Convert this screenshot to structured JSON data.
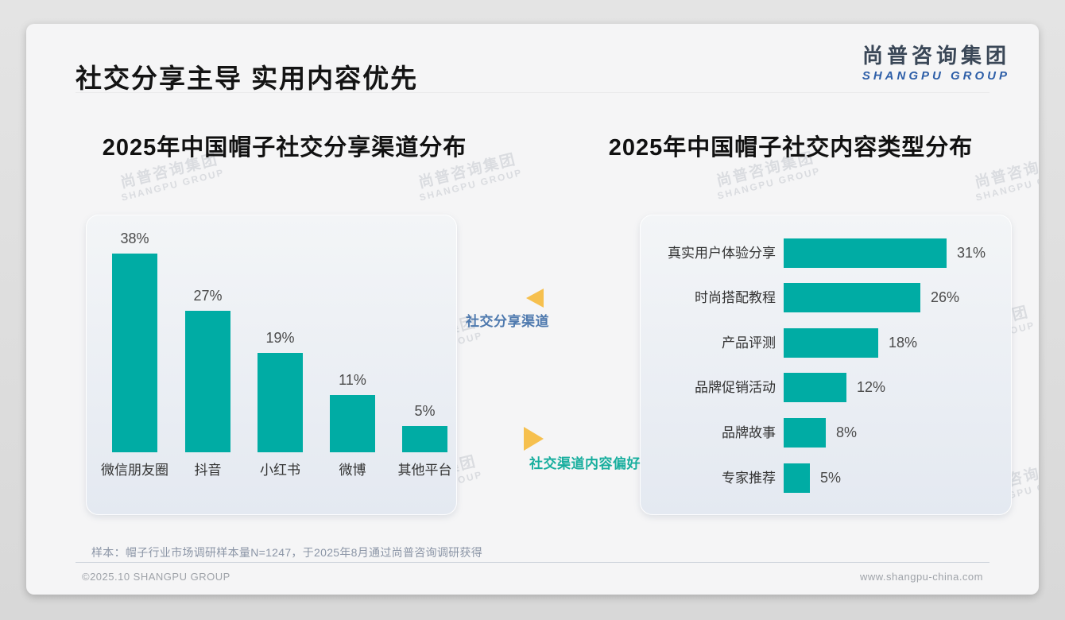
{
  "slide": {
    "title": "社交分享主导 实用内容优先",
    "logo": {
      "cn": "尚普咨询集团",
      "en": "SHANGPU GROUP"
    },
    "watermark": {
      "cn": "尚普咨询集团",
      "en": "SHANGPU GROUP"
    },
    "annotations": {
      "left": "社交分享渠道",
      "right": "社交渠道内容偏好"
    },
    "sample_note": "样本：帽子行业市场调研样本量N=1247，于2025年8月通过尚普咨询调研获得",
    "footer": {
      "left": "©2025.10 SHANGPU GROUP",
      "right": "www.shangpu-china.com"
    }
  },
  "colors": {
    "bar": "#00ACA4",
    "arrow": "#F6C04E",
    "annotation_left": "#4E79AE",
    "annotation_right": "#18AE9E"
  },
  "chart_data": [
    {
      "type": "bar",
      "orientation": "vertical",
      "title": "2025年中国帽子社交分享渠道分布",
      "categories": [
        "微信朋友圈",
        "抖音",
        "小红书",
        "微博",
        "其他平台"
      ],
      "values": [
        38,
        27,
        19,
        11,
        5
      ],
      "value_labels": [
        "38%",
        "27%",
        "19%",
        "11%",
        "5%"
      ],
      "unit": "%",
      "ylim": [
        0,
        40
      ],
      "grid": false,
      "legend": false
    },
    {
      "type": "bar",
      "orientation": "horizontal",
      "title": "2025年中国帽子社交内容类型分布",
      "categories": [
        "真实用户体验分享",
        "时尚搭配教程",
        "产品评测",
        "品牌促销活动",
        "品牌故事",
        "专家推荐"
      ],
      "values": [
        31,
        26,
        18,
        12,
        8,
        5
      ],
      "value_labels": [
        "31%",
        "26%",
        "18%",
        "12%",
        "8%",
        "5%"
      ],
      "unit": "%",
      "xlim": [
        0,
        35
      ],
      "grid": false,
      "legend": false
    }
  ]
}
